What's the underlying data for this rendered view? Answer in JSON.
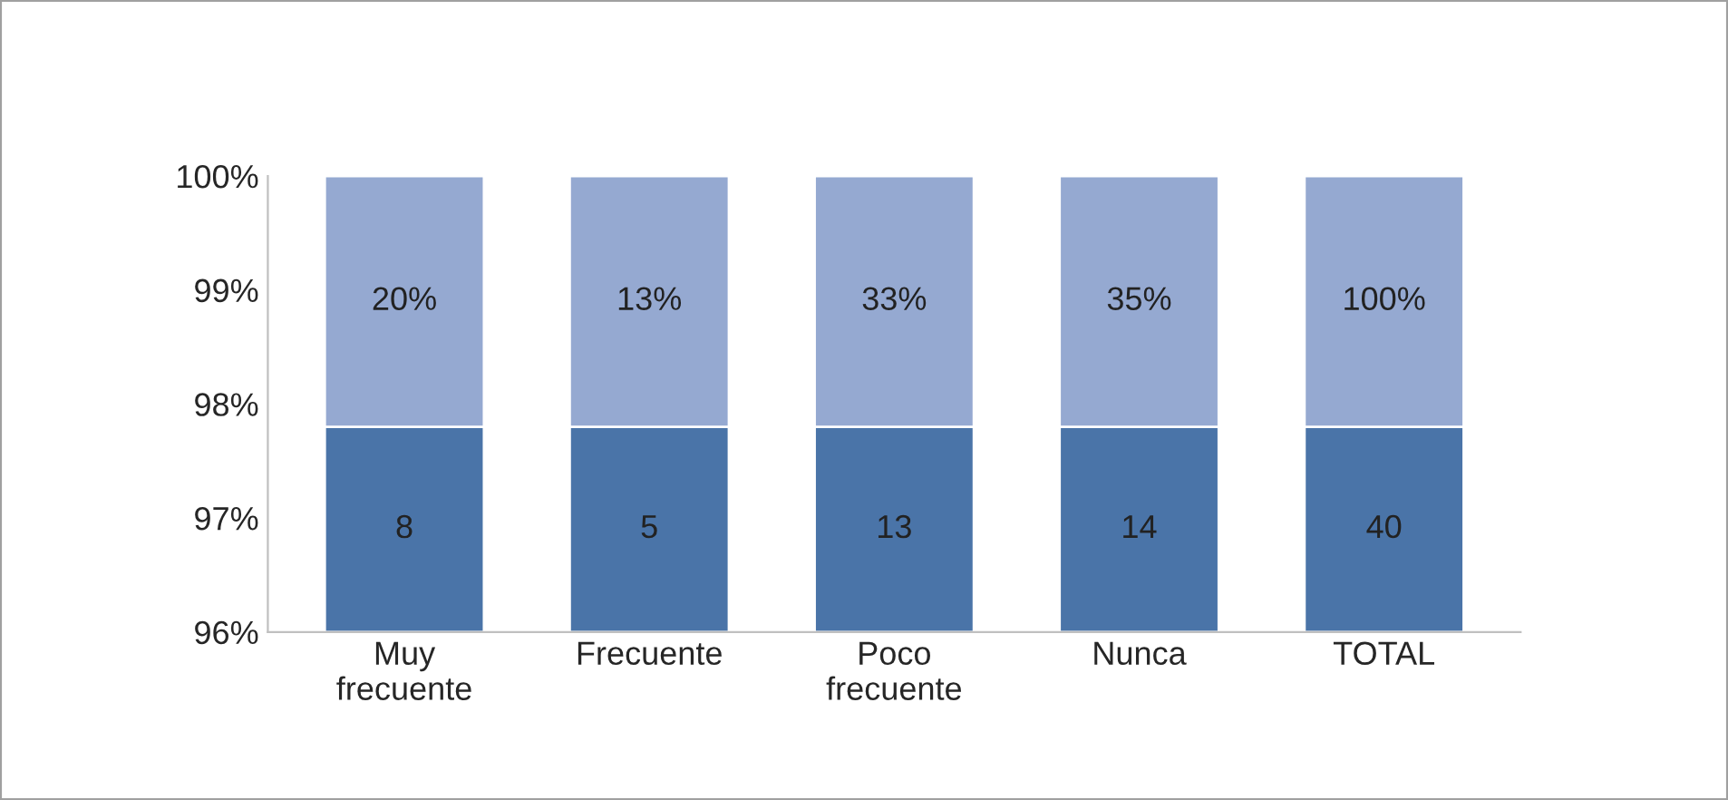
{
  "chart_data": {
    "type": "bar",
    "categories": [
      "Muy\nfrecuente",
      "Frecuente",
      "Poco\nfrecuente",
      "Nunca",
      "TOTAL"
    ],
    "series": [
      {
        "color": "#4a74a8",
        "base": [
          96,
          96,
          96,
          96,
          96
        ],
        "values": [
          1.8,
          1.8,
          1.8,
          1.8,
          1.8
        ]
      },
      {
        "color": "#95a9d1",
        "base": [
          97.8,
          97.8,
          97.8,
          97.8,
          97.8
        ],
        "values": [
          2.2,
          2.2,
          2.2,
          2.2,
          2.2
        ]
      }
    ],
    "annotations": [
      "8",
      "5",
      "13",
      "14",
      "40",
      "20%",
      "13%",
      "33%",
      "35%",
      "100%"
    ],
    "ylim": [
      96,
      100
    ],
    "yticks": [
      {
        "value": 96,
        "label": "96%"
      },
      {
        "value": 97,
        "label": "97%"
      },
      {
        "value": 98,
        "label": "98%"
      },
      {
        "value": 99,
        "label": "99%"
      },
      {
        "value": 100,
        "label": "100%"
      }
    ],
    "grid": false,
    "legend": false
  }
}
